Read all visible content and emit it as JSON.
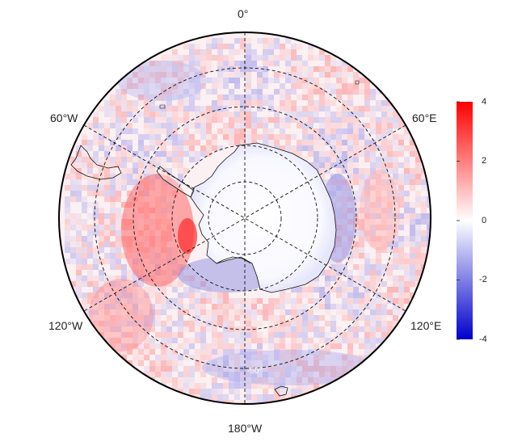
{
  "map": {
    "projection": "south-polar-stereographic",
    "longitude_labels": [
      {
        "id": "lon-0",
        "text": "0°"
      },
      {
        "id": "lon-60e",
        "text": "60°E"
      },
      {
        "id": "lon-120e",
        "text": "120°E"
      },
      {
        "id": "lon-180w",
        "text": "180°W"
      },
      {
        "id": "lon-120w",
        "text": "120°W"
      },
      {
        "id": "lon-60w",
        "text": "60°W"
      }
    ],
    "latitude_label": "-50°",
    "field": {
      "colormap": "blue-white-red",
      "range": [
        -4,
        4
      ],
      "positive_color": "#ff0000",
      "negative_color": "#0000ff",
      "mid_color": "#ffffff"
    }
  },
  "colorbar": {
    "ticks": [
      "4",
      "2",
      "0",
      "-2",
      "-4"
    ],
    "min": -4,
    "max": 4
  }
}
